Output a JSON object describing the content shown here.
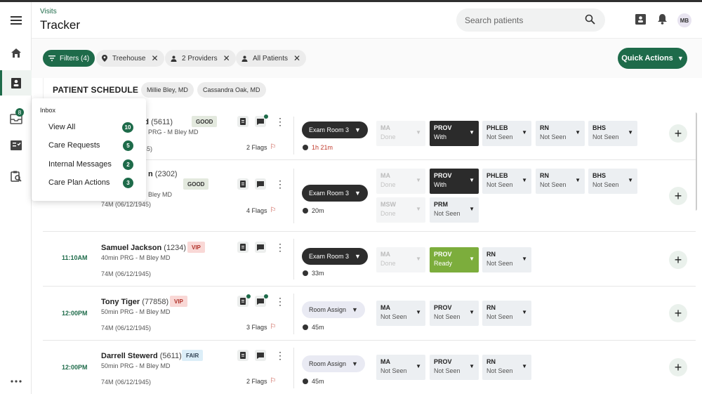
{
  "header": {
    "breadcrumb": "Visits",
    "title": "Tracker",
    "search_placeholder": "Search patients",
    "avatar_initials": "MB",
    "accent_color": "#1e6b4a"
  },
  "nav": {
    "items": [
      {
        "name": "menu-icon"
      },
      {
        "name": "home-icon"
      },
      {
        "name": "patients-icon"
      },
      {
        "name": "inbox-icon",
        "badge": "8"
      },
      {
        "name": "tasks-icon"
      },
      {
        "name": "reports-icon"
      },
      {
        "name": "more-icon"
      }
    ]
  },
  "filters": {
    "filters_label": "Filters (4)",
    "location": "Treehouse",
    "providers": "2 Providers",
    "patients": "All Patients",
    "quick_actions": "Quick Actions"
  },
  "schedule": {
    "title": "PATIENT SCHEDULE",
    "providers": [
      "Millie Bley, MD",
      "Cassandra Oak, MD"
    ]
  },
  "inbox": {
    "title": "Inbox",
    "items": [
      {
        "label": "View All",
        "count": "10"
      },
      {
        "label": "Care Requests",
        "count": "5"
      },
      {
        "label": "Internal Messages",
        "count": "2"
      },
      {
        "label": "Care Plan Actions",
        "count": "3"
      }
    ]
  },
  "rows": [
    {
      "time": "",
      "name_partial": "rd",
      "id": "(5611)",
      "tag": "GOOD",
      "sub": "PRG - M Bley MD",
      "dob": "45)",
      "flags": "2 Flags",
      "room": "Exam Room 3",
      "timer": "1h 21m",
      "statuses": [
        {
          "role": "MA",
          "state": "Done",
          "style": "dim"
        },
        {
          "role": "PROV",
          "state": "With",
          "style": "dark"
        },
        {
          "role": "PHLEB",
          "state": "Not Seen",
          "style": "light"
        },
        {
          "role": "RN",
          "state": "Not Seen",
          "style": "light"
        },
        {
          "role": "BHS",
          "state": "Not Seen",
          "style": "light"
        }
      ]
    },
    {
      "time": "",
      "name_partial": "n",
      "id": "(2302)",
      "tag": "GOOD",
      "sub": "Bley MD",
      "dob": "74M (06/12/1945)",
      "flags": "4 Flags",
      "room": "Exam Room 3",
      "timer": "20m",
      "statuses": [
        {
          "role": "MA",
          "state": "Done",
          "style": "dim"
        },
        {
          "role": "PROV",
          "state": "With",
          "style": "dark"
        },
        {
          "role": "PHLEB",
          "state": "Not Seen",
          "style": "light"
        },
        {
          "role": "RN",
          "state": "Not Seen",
          "style": "light"
        },
        {
          "role": "BHS",
          "state": "Not Seen",
          "style": "light"
        },
        {
          "role": "MSW",
          "state": "Done",
          "style": "dim"
        },
        {
          "role": "PRM",
          "state": "Not Seen",
          "style": "light"
        }
      ]
    },
    {
      "time": "11:10AM",
      "name": "Samuel Jackson",
      "id": "(1234)",
      "tag": "VIP",
      "sub": "40min PRG - M Bley MD",
      "dob": "74M (06/12/1945)",
      "flags": "",
      "room": "Exam Room 3",
      "timer": "33m",
      "statuses": [
        {
          "role": "MA",
          "state": "Done",
          "style": "dim"
        },
        {
          "role": "PROV",
          "state": "Ready",
          "style": "green"
        },
        {
          "role": "RN",
          "state": "Not Seen",
          "style": "light"
        }
      ]
    },
    {
      "time": "12:00PM",
      "name": "Tony Tiger",
      "id": "(77858)",
      "tag": "VIP",
      "sub": "50min PRG - M Bley MD",
      "dob": "74M (06/12/1945)",
      "flags": "3 Flags",
      "room": "Room Assign",
      "timer": "45m",
      "statuses": [
        {
          "role": "MA",
          "state": "Not Seen",
          "style": "light"
        },
        {
          "role": "PROV",
          "state": "Not Seen",
          "style": "light"
        },
        {
          "role": "RN",
          "state": "Not Seen",
          "style": "light"
        }
      ]
    },
    {
      "time": "12:00PM",
      "name": "Darrell Stewerd",
      "id": "(5611)",
      "tag": "FAIR",
      "sub": "50min PRG - M Bley MD",
      "dob": "74M (06/12/1945)",
      "flags": "2 Flags",
      "room": "Room Assign",
      "timer": "45m",
      "statuses": [
        {
          "role": "MA",
          "state": "Not Seen",
          "style": "light"
        },
        {
          "role": "PROV",
          "state": "Not Seen",
          "style": "light"
        },
        {
          "role": "RN",
          "state": "Not Seen",
          "style": "light"
        }
      ]
    }
  ]
}
